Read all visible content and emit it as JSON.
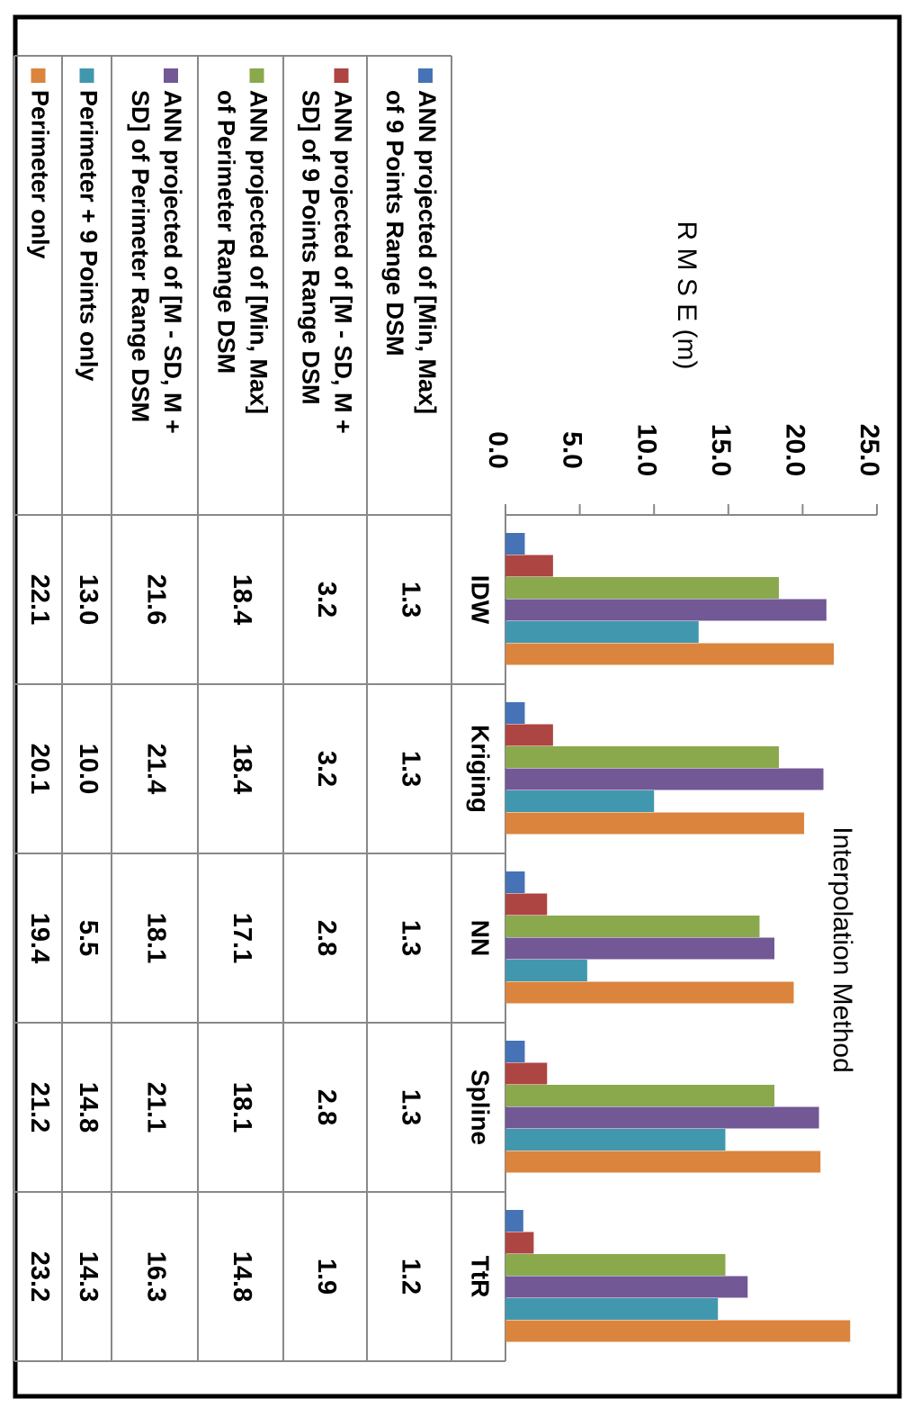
{
  "chart_data": {
    "type": "bar",
    "orientation": "rotated-90-clockwise",
    "title": "",
    "xlabel": "Interpolation Method",
    "ylabel": "R M S E (m)",
    "ylim": [
      0,
      25
    ],
    "yticks": [
      "0.0",
      "5.0",
      "10.0",
      "15.0",
      "20.0",
      "25.0"
    ],
    "grid": false,
    "legend": "data-table",
    "categories": [
      "IDW",
      "Kriging",
      "NN",
      "Spline",
      "TtR"
    ],
    "series": [
      {
        "name": "ANN projected of [Min, Max] of 9 Points Range DSM",
        "legend_lines": [
          "ANN projected of [Min, Max]",
          "of 9 Points Range DSM"
        ],
        "color": "#4573b5",
        "values": [
          1.3,
          1.3,
          1.3,
          1.3,
          1.2
        ],
        "labels": [
          "1.3",
          "1.3",
          "1.3",
          "1.3",
          "1.2"
        ]
      },
      {
        "name": "ANN projected of [M - SD, M + SD] of 9 Points Range DSM",
        "legend_lines": [
          "ANN projected of [M - SD, M +",
          "SD] of 9 Points Range DSM"
        ],
        "color": "#ad4543",
        "values": [
          3.2,
          3.2,
          2.8,
          2.8,
          1.9
        ],
        "labels": [
          "3.2",
          "3.2",
          "2.8",
          "2.8",
          "1.9"
        ]
      },
      {
        "name": "ANN projected of [Min, Max] of Perimeter Range DSM",
        "legend_lines": [
          "ANN projected of [Min, Max]",
          "of Perimeter Range DSM"
        ],
        "color": "#8aa94d",
        "values": [
          18.4,
          18.4,
          17.1,
          18.1,
          14.8
        ],
        "labels": [
          "18.4",
          "18.4",
          "17.1",
          "18.1",
          "14.8"
        ]
      },
      {
        "name": "ANN projected of [M - SD, M + SD] of Perimeter Range DSM",
        "legend_lines": [
          "ANN projected of [M - SD, M +",
          "SD] of Perimeter Range DSM"
        ],
        "color": "#725895",
        "values": [
          21.6,
          21.4,
          18.1,
          21.1,
          16.3
        ],
        "labels": [
          "21.6",
          "21.4",
          "18.1",
          "21.1",
          "16.3"
        ]
      },
      {
        "name": "Perimeter + 9 Points only",
        "legend_lines": [
          "Perimeter + 9 Points only"
        ],
        "color": "#4198ae",
        "values": [
          13.0,
          10.0,
          5.5,
          14.8,
          14.3
        ],
        "labels": [
          "13.0",
          "10.0",
          "5.5",
          "14.8",
          "14.3"
        ]
      },
      {
        "name": "Perimeter only",
        "legend_lines": [
          "Perimeter only"
        ],
        "color": "#db843d",
        "values": [
          22.1,
          20.1,
          19.4,
          21.2,
          23.2
        ],
        "labels": [
          "22.1",
          "20.1",
          "19.4",
          "21.2",
          "23.2"
        ]
      }
    ]
  }
}
